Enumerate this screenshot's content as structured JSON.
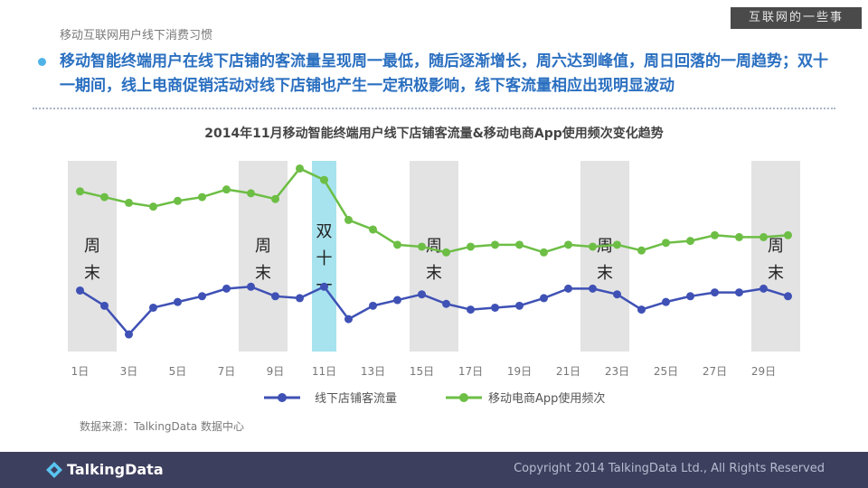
{
  "header": {
    "section_title": "移动互联网用户线下消费习惯",
    "badge": "互联网的一些事",
    "headline": "移动智能终端用户在线下店铺的客流量呈现周一最低，随后逐渐增长，周六达到峰值，周日回落的一周趋势；双十一期间，线上电商促销活动对线下店铺也产生一定积极影响，线下客流量相应出现明显波动"
  },
  "chart_data": {
    "type": "line",
    "title": "2014年11月移动智能终端用户线下店铺客流量&移动电商App使用频次变化趋势",
    "x": [
      1,
      2,
      3,
      4,
      5,
      6,
      7,
      8,
      9,
      10,
      11,
      12,
      13,
      14,
      15,
      16,
      17,
      18,
      19,
      20,
      21,
      22,
      23,
      24,
      25,
      26,
      27,
      28,
      29,
      30
    ],
    "x_tick_labels": [
      "1日",
      "3日",
      "5日",
      "7日",
      "9日",
      "11日",
      "13日",
      "15日",
      "17日",
      "19日",
      "21日",
      "23日",
      "25日",
      "27日",
      "29日"
    ],
    "x_tick_values": [
      1,
      3,
      5,
      7,
      9,
      11,
      13,
      15,
      17,
      19,
      21,
      23,
      25,
      27,
      29
    ],
    "xlim": [
      0.5,
      30.5
    ],
    "ylim": [
      0,
      100
    ],
    "grid": false,
    "legend_position": "bottom",
    "series": [
      {
        "name": "线下店铺客流量",
        "color": "#3f51b5",
        "values": [
          32,
          24,
          9,
          23,
          26,
          29,
          33,
          34,
          29,
          28,
          34,
          17,
          24,
          27,
          30,
          25,
          22,
          23,
          24,
          28,
          33,
          33,
          30,
          22,
          26,
          29,
          31,
          31,
          33,
          29
        ]
      },
      {
        "name": "移动电商App使用频次",
        "color": "#6dbe45",
        "values": [
          84,
          81,
          78,
          76,
          79,
          81,
          85,
          83,
          80,
          96,
          90,
          69,
          64,
          56,
          55,
          52,
          55,
          56,
          56,
          52,
          56,
          55,
          56,
          53,
          57,
          58,
          61,
          60,
          60,
          61
        ]
      }
    ],
    "shaded_bands": [
      {
        "from": 0.5,
        "to": 2.5,
        "label": "周末",
        "color": "#e3e3e3"
      },
      {
        "from": 7.5,
        "to": 9.5,
        "label": "周末",
        "color": "#e3e3e3"
      },
      {
        "from": 10.5,
        "to": 11.5,
        "label": "双十一",
        "color": "#a6e3ee"
      },
      {
        "from": 14.5,
        "to": 16.5,
        "label": "周末",
        "color": "#e3e3e3"
      },
      {
        "from": 21.5,
        "to": 23.5,
        "label": "周末",
        "color": "#e3e3e3"
      },
      {
        "from": 28.5,
        "to": 30.5,
        "label": "周末",
        "color": "#e3e3e3"
      }
    ]
  },
  "source": "数据来源：TalkingData 数据中心",
  "footer": {
    "logo_text": "TalkingData",
    "copyright": "Copyright 2014 TalkingData Ltd., All Rights Reserved"
  }
}
